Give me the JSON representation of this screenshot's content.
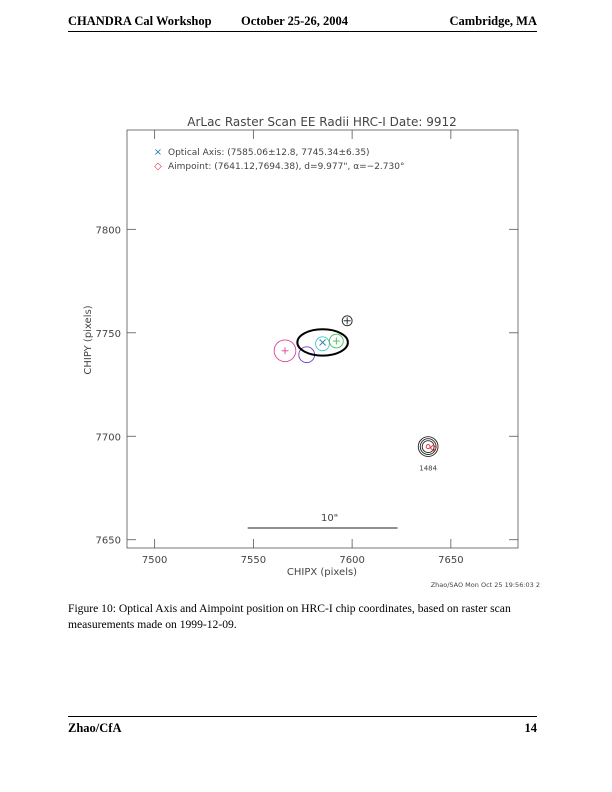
{
  "header": {
    "left": "CHANDRA Cal Workshop",
    "center": "October 25-26, 2004",
    "right": "Cambridge, MA"
  },
  "chart_data": {
    "type": "scatter",
    "title": "ArLac Raster Scan EE Radii  HRC-I  Date: 9912",
    "x_label": "CHIPX (pixels)",
    "y_label": "CHIPY (pixels)",
    "xlim": [
      7486,
      7684
    ],
    "xticks": [
      7500,
      7550,
      7600,
      7650
    ],
    "ylim": [
      7646,
      7848
    ],
    "yticks": [
      7650,
      7700,
      7750,
      7800
    ],
    "legend": [
      {
        "symbol": "×",
        "color": "#2a7aa8",
        "label": "Optical Axis: (7585.06±12.8, 7745.34±6.35)"
      },
      {
        "symbol": "◇",
        "color": "#e0303a",
        "label": "Aimpoint: (7641.12,7694.38), d=9.977\", α=−2.730°"
      }
    ],
    "optical_axis": {
      "x": 7585.06,
      "y": 7745.34,
      "xerr": 12.8,
      "yerr": 6.35,
      "color": "#2a7aa8",
      "ellipse_color": "#000000"
    },
    "aimpoint": {
      "x": 7641.12,
      "y": 7694.38,
      "color": "#e0303a"
    },
    "points": [
      {
        "x": 7566,
        "y": 7741.3,
        "r": 5.5,
        "color": "#e0409a",
        "plus": true
      },
      {
        "x": 7577,
        "y": 7739.4,
        "r": 4,
        "color": "#6a3fc0",
        "plus": false
      },
      {
        "x": 7585,
        "y": 7744.7,
        "r": 3.5,
        "color": "#40c8c8",
        "plus": false
      },
      {
        "x": 7592,
        "y": 7746,
        "r": 3.5,
        "color": "#40c060",
        "plus": true
      },
      {
        "x": 7597.5,
        "y": 7755.8,
        "r": 2.5,
        "color": "#222222",
        "plus": true
      },
      {
        "x": 7638.5,
        "y": 7695,
        "r": 5,
        "color": "#222222",
        "plus": false
      },
      {
        "x": 7638.5,
        "y": 7695,
        "r": 4,
        "color": "#222222",
        "plus": false
      },
      {
        "x": 7638.5,
        "y": 7695,
        "r": 3,
        "color": "#222222",
        "plus": false
      },
      {
        "x": 7638.5,
        "y": 7695,
        "r": 1,
        "color": "#e0303a",
        "plus": false,
        "label": "1484"
      }
    ],
    "scale_bar": {
      "label": "10\"",
      "length": 75.9
    },
    "timestamp": "Zhao/SAO Mon Oct 25 19:56:03 2"
  },
  "caption": "Figure 10: Optical Axis and Aimpoint position on HRC-I chip coordinates, based on raster scan measurements made on 1999-12-09.",
  "footer": {
    "left": "Zhao/CfA",
    "right": "14"
  }
}
